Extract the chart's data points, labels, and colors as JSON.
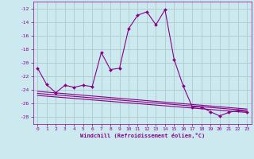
{
  "xlabel": "Windchill (Refroidissement éolien,°C)",
  "background_color": "#cce9f0",
  "grid_color": "#aacccc",
  "line_color": "#880088",
  "xlim": [
    -0.5,
    23.5
  ],
  "ylim": [
    -29,
    -11
  ],
  "xticks": [
    0,
    1,
    2,
    3,
    4,
    5,
    6,
    7,
    8,
    9,
    10,
    11,
    12,
    13,
    14,
    15,
    16,
    17,
    18,
    19,
    20,
    21,
    22,
    23
  ],
  "yticks": [
    -28,
    -26,
    -24,
    -22,
    -20,
    -18,
    -16,
    -14,
    -12
  ],
  "series": [
    {
      "x": [
        0,
        1,
        2,
        3,
        4,
        5,
        6,
        7,
        8,
        9,
        10,
        11,
        12,
        13,
        14,
        15,
        16,
        17,
        18,
        19,
        20,
        21,
        22,
        23
      ],
      "y": [
        -20.8,
        -23.2,
        -24.4,
        -23.3,
        -23.6,
        -23.3,
        -23.5,
        -18.5,
        -21.0,
        -20.8,
        -15.0,
        -13.0,
        -12.5,
        -14.4,
        -12.2,
        -19.5,
        -23.4,
        -26.5,
        -26.5,
        -27.2,
        -27.8,
        -27.3,
        -27.0,
        -27.2
      ],
      "marker": "D",
      "markersize": 2.0,
      "linewidth": 0.8,
      "has_marker": true
    },
    {
      "x": [
        0,
        23
      ],
      "y": [
        -24.2,
        -26.8
      ],
      "marker": null,
      "markersize": 0,
      "linewidth": 0.8,
      "has_marker": false
    },
    {
      "x": [
        0,
        23
      ],
      "y": [
        -24.5,
        -27.0
      ],
      "marker": null,
      "markersize": 0,
      "linewidth": 0.8,
      "has_marker": false
    },
    {
      "x": [
        0,
        23
      ],
      "y": [
        -24.8,
        -27.3
      ],
      "marker": null,
      "markersize": 0,
      "linewidth": 0.8,
      "has_marker": false
    }
  ]
}
